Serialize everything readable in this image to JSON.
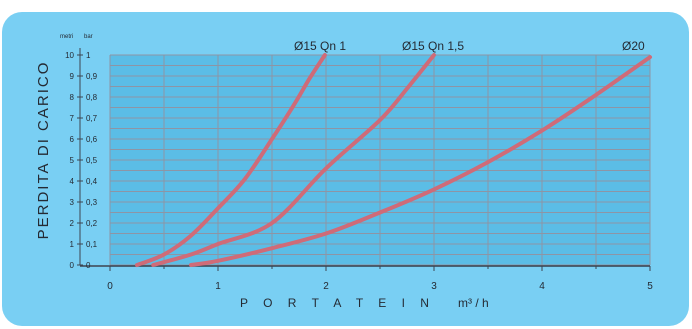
{
  "chart_data": {
    "type": "line",
    "ylabel": "PERDITA DI CARICO",
    "xlabel_main": "P O R T A T E   I N",
    "xlabel_unit": "m³ / h",
    "y_unit_left": "metri",
    "y_unit_right": "bar",
    "xlim": [
      0,
      5
    ],
    "ylim_bar": [
      0,
      1
    ],
    "ylim_metri": [
      0,
      10
    ],
    "x_ticks": [
      "0",
      "1",
      "2",
      "3",
      "4",
      "5"
    ],
    "y_ticks_metri": [
      "0",
      "1",
      "2",
      "3",
      "4",
      "5",
      "6",
      "7",
      "8",
      "9",
      "10"
    ],
    "y_ticks_bar": [
      "0",
      "0,1",
      "0,2",
      "0,3",
      "0,4",
      "0,5",
      "0,6",
      "0,7",
      "0,8",
      "0,9",
      "1"
    ],
    "grid": true,
    "series": [
      {
        "name": "Ø15 Qn 1",
        "x": [
          0.25,
          0.5,
          0.75,
          1.0,
          1.25,
          1.5,
          1.7,
          1.85,
          1.99
        ],
        "y": [
          0.0,
          0.05,
          0.14,
          0.27,
          0.41,
          0.6,
          0.76,
          0.89,
          1.0
        ]
      },
      {
        "name": "Ø15 Qn 1,5",
        "x": [
          0.4,
          0.75,
          1.0,
          1.5,
          2.0,
          2.5,
          2.75,
          3.0
        ],
        "y": [
          0.0,
          0.05,
          0.1,
          0.2,
          0.46,
          0.69,
          0.84,
          1.0
        ]
      },
      {
        "name": "Ø20",
        "x": [
          0.75,
          1.0,
          1.5,
          2.0,
          2.5,
          3.0,
          3.5,
          4.0,
          4.5,
          5.0
        ],
        "y": [
          0.0,
          0.02,
          0.08,
          0.15,
          0.25,
          0.36,
          0.49,
          0.64,
          0.81,
          0.99
        ]
      }
    ],
    "colors": {
      "card_bg": "#79cff3",
      "plot_bg": "#5bbde6",
      "grid": "#8d95a5",
      "axis": "#3d4450",
      "curve": "#cf6b78",
      "text": "#242a33"
    }
  }
}
